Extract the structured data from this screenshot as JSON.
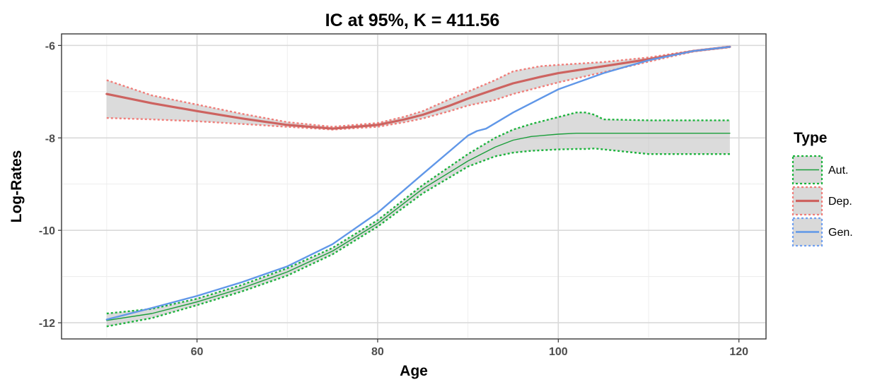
{
  "chart_data": {
    "type": "line",
    "title": "IC at 95%, K = 411.56",
    "xlabel": "Age",
    "ylabel": "Log-Rates",
    "xlim": [
      45,
      123
    ],
    "ylim": [
      -12.35,
      -5.75
    ],
    "xticks": [
      60,
      80,
      100,
      120
    ],
    "yticks": [
      -12,
      -10,
      -8,
      -6
    ],
    "xtick_labels": [
      "60",
      "80",
      "100",
      "120"
    ],
    "ytick_labels": [
      "-12",
      "-10",
      "-8",
      "-6"
    ],
    "grid": true,
    "legend": {
      "title": "Type",
      "position": "right"
    },
    "series": [
      {
        "name": "Aut.",
        "color": "#1a9e3a",
        "band_color": "#1db33d",
        "x": [
          50,
          55,
          60,
          65,
          70,
          75,
          80,
          85,
          90,
          93,
          95,
          97,
          100,
          102,
          103,
          104,
          105,
          110,
          115,
          119
        ],
        "values": [
          -11.95,
          -11.8,
          -11.55,
          -11.25,
          -10.9,
          -10.45,
          -9.85,
          -9.1,
          -8.5,
          -8.2,
          -8.05,
          -7.97,
          -7.92,
          -7.9,
          -7.9,
          -7.9,
          -7.9,
          -7.9,
          -7.9,
          -7.9
        ],
        "lower": [
          -12.08,
          -11.9,
          -11.62,
          -11.32,
          -10.98,
          -10.52,
          -9.92,
          -9.2,
          -8.62,
          -8.4,
          -8.32,
          -8.28,
          -8.25,
          -8.24,
          -8.24,
          -8.23,
          -8.25,
          -8.35,
          -8.35,
          -8.35
        ],
        "upper": [
          -11.8,
          -11.7,
          -11.48,
          -11.18,
          -10.82,
          -10.38,
          -9.78,
          -9.02,
          -8.35,
          -8.0,
          -7.82,
          -7.7,
          -7.55,
          -7.45,
          -7.45,
          -7.5,
          -7.6,
          -7.62,
          -7.62,
          -7.62
        ]
      },
      {
        "name": "Dep.",
        "color": "#cd6360",
        "band_color": "#f07e7a",
        "x": [
          50,
          55,
          60,
          65,
          70,
          75,
          80,
          83,
          85,
          88,
          90,
          93,
          95,
          98,
          100,
          105,
          110,
          115,
          119
        ],
        "values": [
          -7.05,
          -7.25,
          -7.42,
          -7.58,
          -7.72,
          -7.8,
          -7.72,
          -7.6,
          -7.5,
          -7.3,
          -7.15,
          -6.95,
          -6.82,
          -6.68,
          -6.6,
          -6.45,
          -6.3,
          -6.12,
          -6.03
        ],
        "lower": [
          -7.57,
          -7.6,
          -7.64,
          -7.7,
          -7.76,
          -7.82,
          -7.76,
          -7.66,
          -7.58,
          -7.42,
          -7.3,
          -7.18,
          -7.05,
          -6.9,
          -6.8,
          -6.58,
          -6.35,
          -6.13,
          -6.04
        ],
        "upper": [
          -6.75,
          -7.08,
          -7.28,
          -7.48,
          -7.66,
          -7.76,
          -7.68,
          -7.54,
          -7.42,
          -7.16,
          -7.0,
          -6.75,
          -6.56,
          -6.45,
          -6.42,
          -6.36,
          -6.26,
          -6.11,
          -6.02
        ]
      },
      {
        "name": "Gen.",
        "color": "#6097e8",
        "band_color": "#6f9ff0",
        "x": [
          50,
          55,
          60,
          65,
          70,
          75,
          80,
          85,
          90,
          91,
          92,
          95,
          100,
          105,
          110,
          115,
          119
        ],
        "values": [
          -11.93,
          -11.68,
          -11.42,
          -11.12,
          -10.78,
          -10.3,
          -9.62,
          -8.78,
          -7.95,
          -7.85,
          -7.8,
          -7.45,
          -6.95,
          -6.6,
          -6.32,
          -6.12,
          -6.03
        ]
      }
    ]
  }
}
